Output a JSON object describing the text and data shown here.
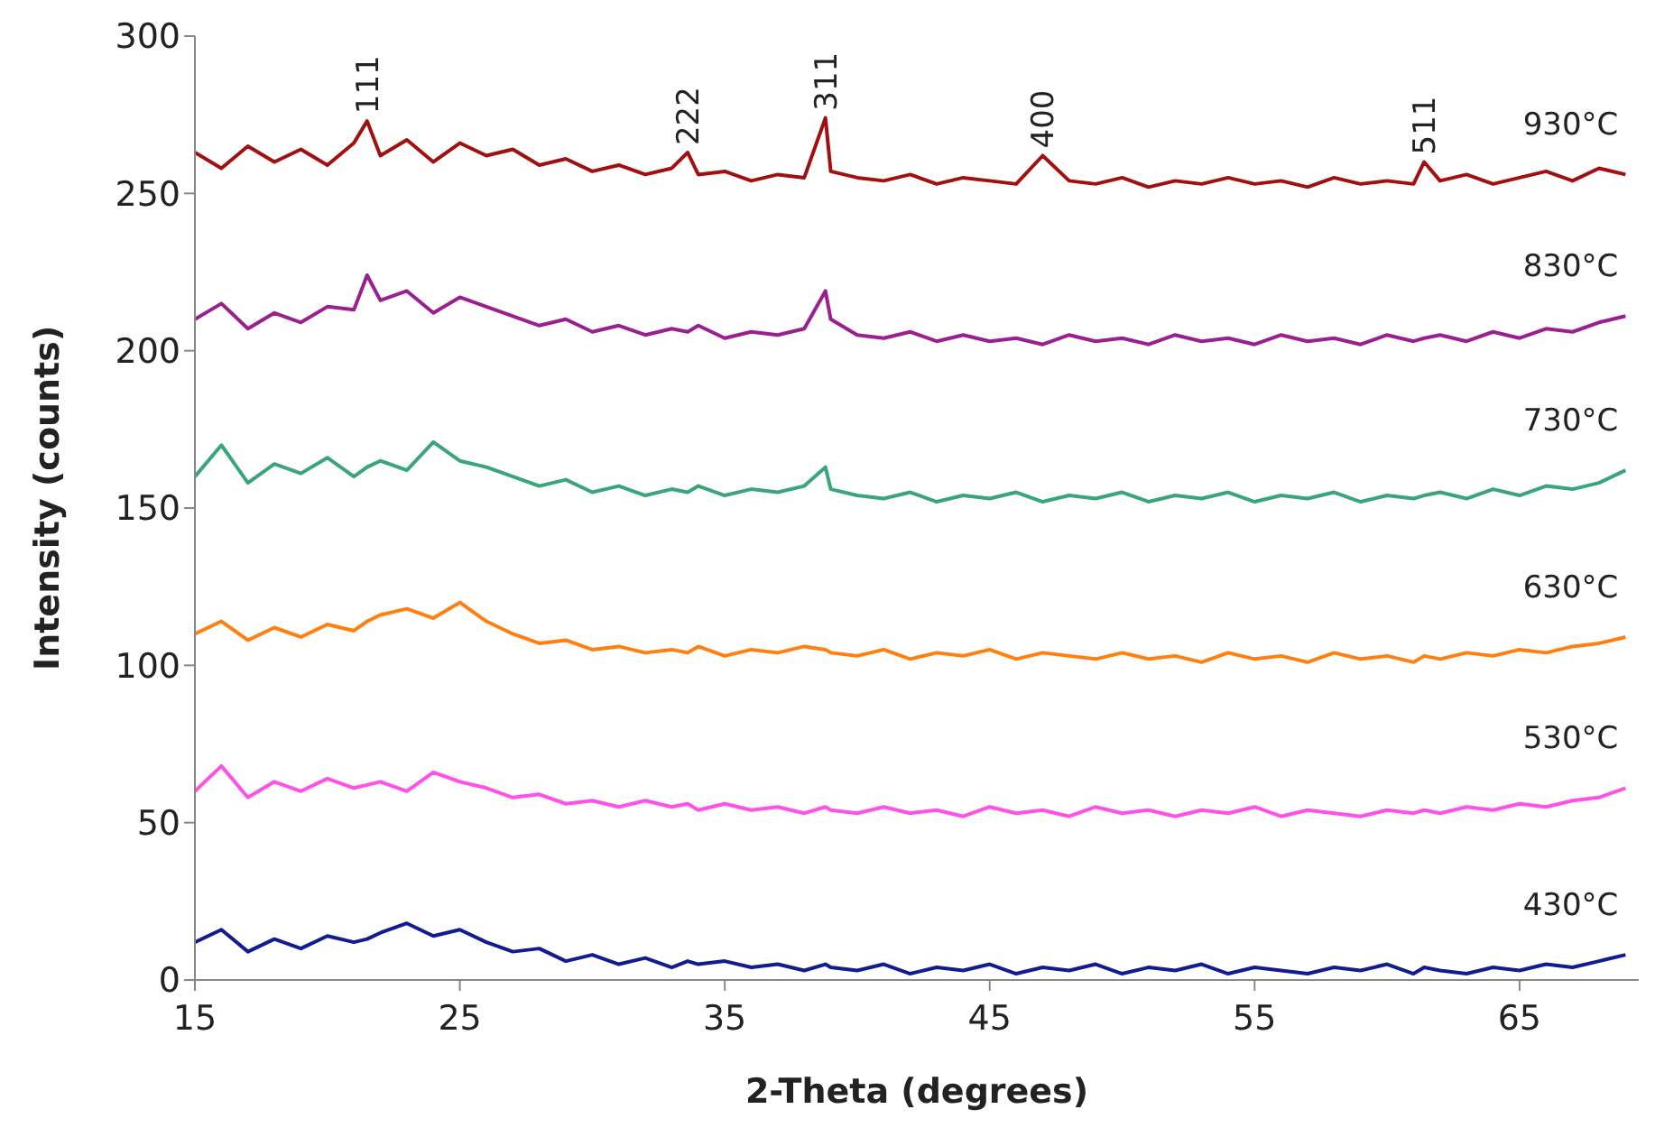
{
  "chart_data": {
    "type": "line",
    "xlabel": "2-Theta (degrees)",
    "ylabel": "Intensity (counts)",
    "x": [
      15,
      16,
      17,
      18,
      19,
      20,
      21,
      21.5,
      22,
      23,
      24,
      25,
      26,
      27,
      28,
      29,
      30,
      31,
      32,
      33,
      33.6,
      34,
      35,
      36,
      37,
      38,
      38.8,
      39,
      40,
      41,
      42,
      43,
      44,
      45,
      46,
      47,
      48,
      49,
      50,
      51,
      52,
      53,
      54,
      55,
      56,
      57,
      58,
      59,
      60,
      61,
      61.4,
      62,
      63,
      64,
      65,
      66,
      67,
      68,
      69
    ],
    "xlim": [
      15,
      69.5
    ],
    "xticks": [
      15,
      25,
      35,
      45,
      55,
      65
    ],
    "ylim": [
      0,
      300
    ],
    "yticks": [
      0,
      50,
      100,
      150,
      200,
      250,
      300
    ],
    "grid": false,
    "legend": false,
    "marker": "none",
    "line_style": "solid",
    "series": [
      {
        "name": "430°C",
        "color": "#101c90",
        "values": [
          12,
          16,
          9,
          13,
          10,
          14,
          12,
          13,
          15,
          18,
          14,
          16,
          12,
          9,
          10,
          6,
          8,
          5,
          7,
          4,
          6,
          5,
          6,
          4,
          5,
          3,
          5,
          4,
          3,
          5,
          2,
          4,
          3,
          5,
          2,
          4,
          3,
          5,
          2,
          4,
          3,
          5,
          2,
          4,
          3,
          2,
          4,
          3,
          5,
          2,
          4,
          3,
          2,
          4,
          3,
          5,
          4,
          6,
          8
        ]
      },
      {
        "name": "530°C",
        "color": "#ff50e8",
        "values": [
          60,
          68,
          58,
          63,
          60,
          64,
          61,
          62,
          63,
          60,
          66,
          63,
          61,
          58,
          59,
          56,
          57,
          55,
          57,
          55,
          56,
          54,
          56,
          54,
          55,
          53,
          55,
          54,
          53,
          55,
          53,
          54,
          52,
          55,
          53,
          54,
          52,
          55,
          53,
          54,
          52,
          54,
          53,
          55,
          52,
          54,
          53,
          52,
          54,
          53,
          54,
          53,
          55,
          54,
          56,
          55,
          57,
          58,
          61
        ]
      },
      {
        "name": "630°C",
        "color": "#ff8010",
        "values": [
          110,
          114,
          108,
          112,
          109,
          113,
          111,
          114,
          116,
          118,
          115,
          120,
          114,
          110,
          107,
          108,
          105,
          106,
          104,
          105,
          104,
          106,
          103,
          105,
          104,
          106,
          105,
          104,
          103,
          105,
          102,
          104,
          103,
          105,
          102,
          104,
          103,
          102,
          104,
          102,
          103,
          101,
          104,
          102,
          103,
          101,
          104,
          102,
          103,
          101,
          103,
          102,
          104,
          103,
          105,
          104,
          106,
          107,
          109
        ]
      },
      {
        "name": "730°C",
        "color": "#3aa57a",
        "values": [
          160,
          170,
          158,
          164,
          161,
          166,
          160,
          163,
          165,
          162,
          171,
          165,
          163,
          160,
          157,
          159,
          155,
          157,
          154,
          156,
          155,
          157,
          154,
          156,
          155,
          157,
          163,
          156,
          154,
          153,
          155,
          152,
          154,
          153,
          155,
          152,
          154,
          153,
          155,
          152,
          154,
          153,
          155,
          152,
          154,
          153,
          155,
          152,
          154,
          153,
          154,
          155,
          153,
          156,
          154,
          157,
          156,
          158,
          162
        ]
      },
      {
        "name": "830°C",
        "color": "#9a2090",
        "values": [
          210,
          215,
          207,
          212,
          209,
          214,
          213,
          224,
          216,
          219,
          212,
          217,
          214,
          211,
          208,
          210,
          206,
          208,
          205,
          207,
          206,
          208,
          204,
          206,
          205,
          207,
          219,
          210,
          205,
          204,
          206,
          203,
          205,
          203,
          204,
          202,
          205,
          203,
          204,
          202,
          205,
          203,
          204,
          202,
          205,
          203,
          204,
          202,
          205,
          203,
          204,
          205,
          203,
          206,
          204,
          207,
          206,
          209,
          211
        ]
      },
      {
        "name": "930°C",
        "color": "#a01010",
        "values": [
          263,
          258,
          265,
          260,
          264,
          259,
          266,
          273,
          262,
          267,
          260,
          266,
          262,
          264,
          259,
          261,
          257,
          259,
          256,
          258,
          263,
          256,
          257,
          254,
          256,
          255,
          274,
          257,
          255,
          254,
          256,
          253,
          255,
          254,
          253,
          262,
          254,
          253,
          255,
          252,
          254,
          253,
          255,
          253,
          254,
          252,
          255,
          253,
          254,
          253,
          260,
          254,
          256,
          253,
          255,
          257,
          254,
          258,
          256
        ]
      }
    ],
    "annotations": [
      {
        "text": "111",
        "x": 21.5,
        "y": 273
      },
      {
        "text": "222",
        "x": 33.6,
        "y": 263
      },
      {
        "text": "311",
        "x": 38.8,
        "y": 274
      },
      {
        "text": "400",
        "x": 47,
        "y": 262
      },
      {
        "text": "511",
        "x": 61.4,
        "y": 260
      }
    ]
  }
}
